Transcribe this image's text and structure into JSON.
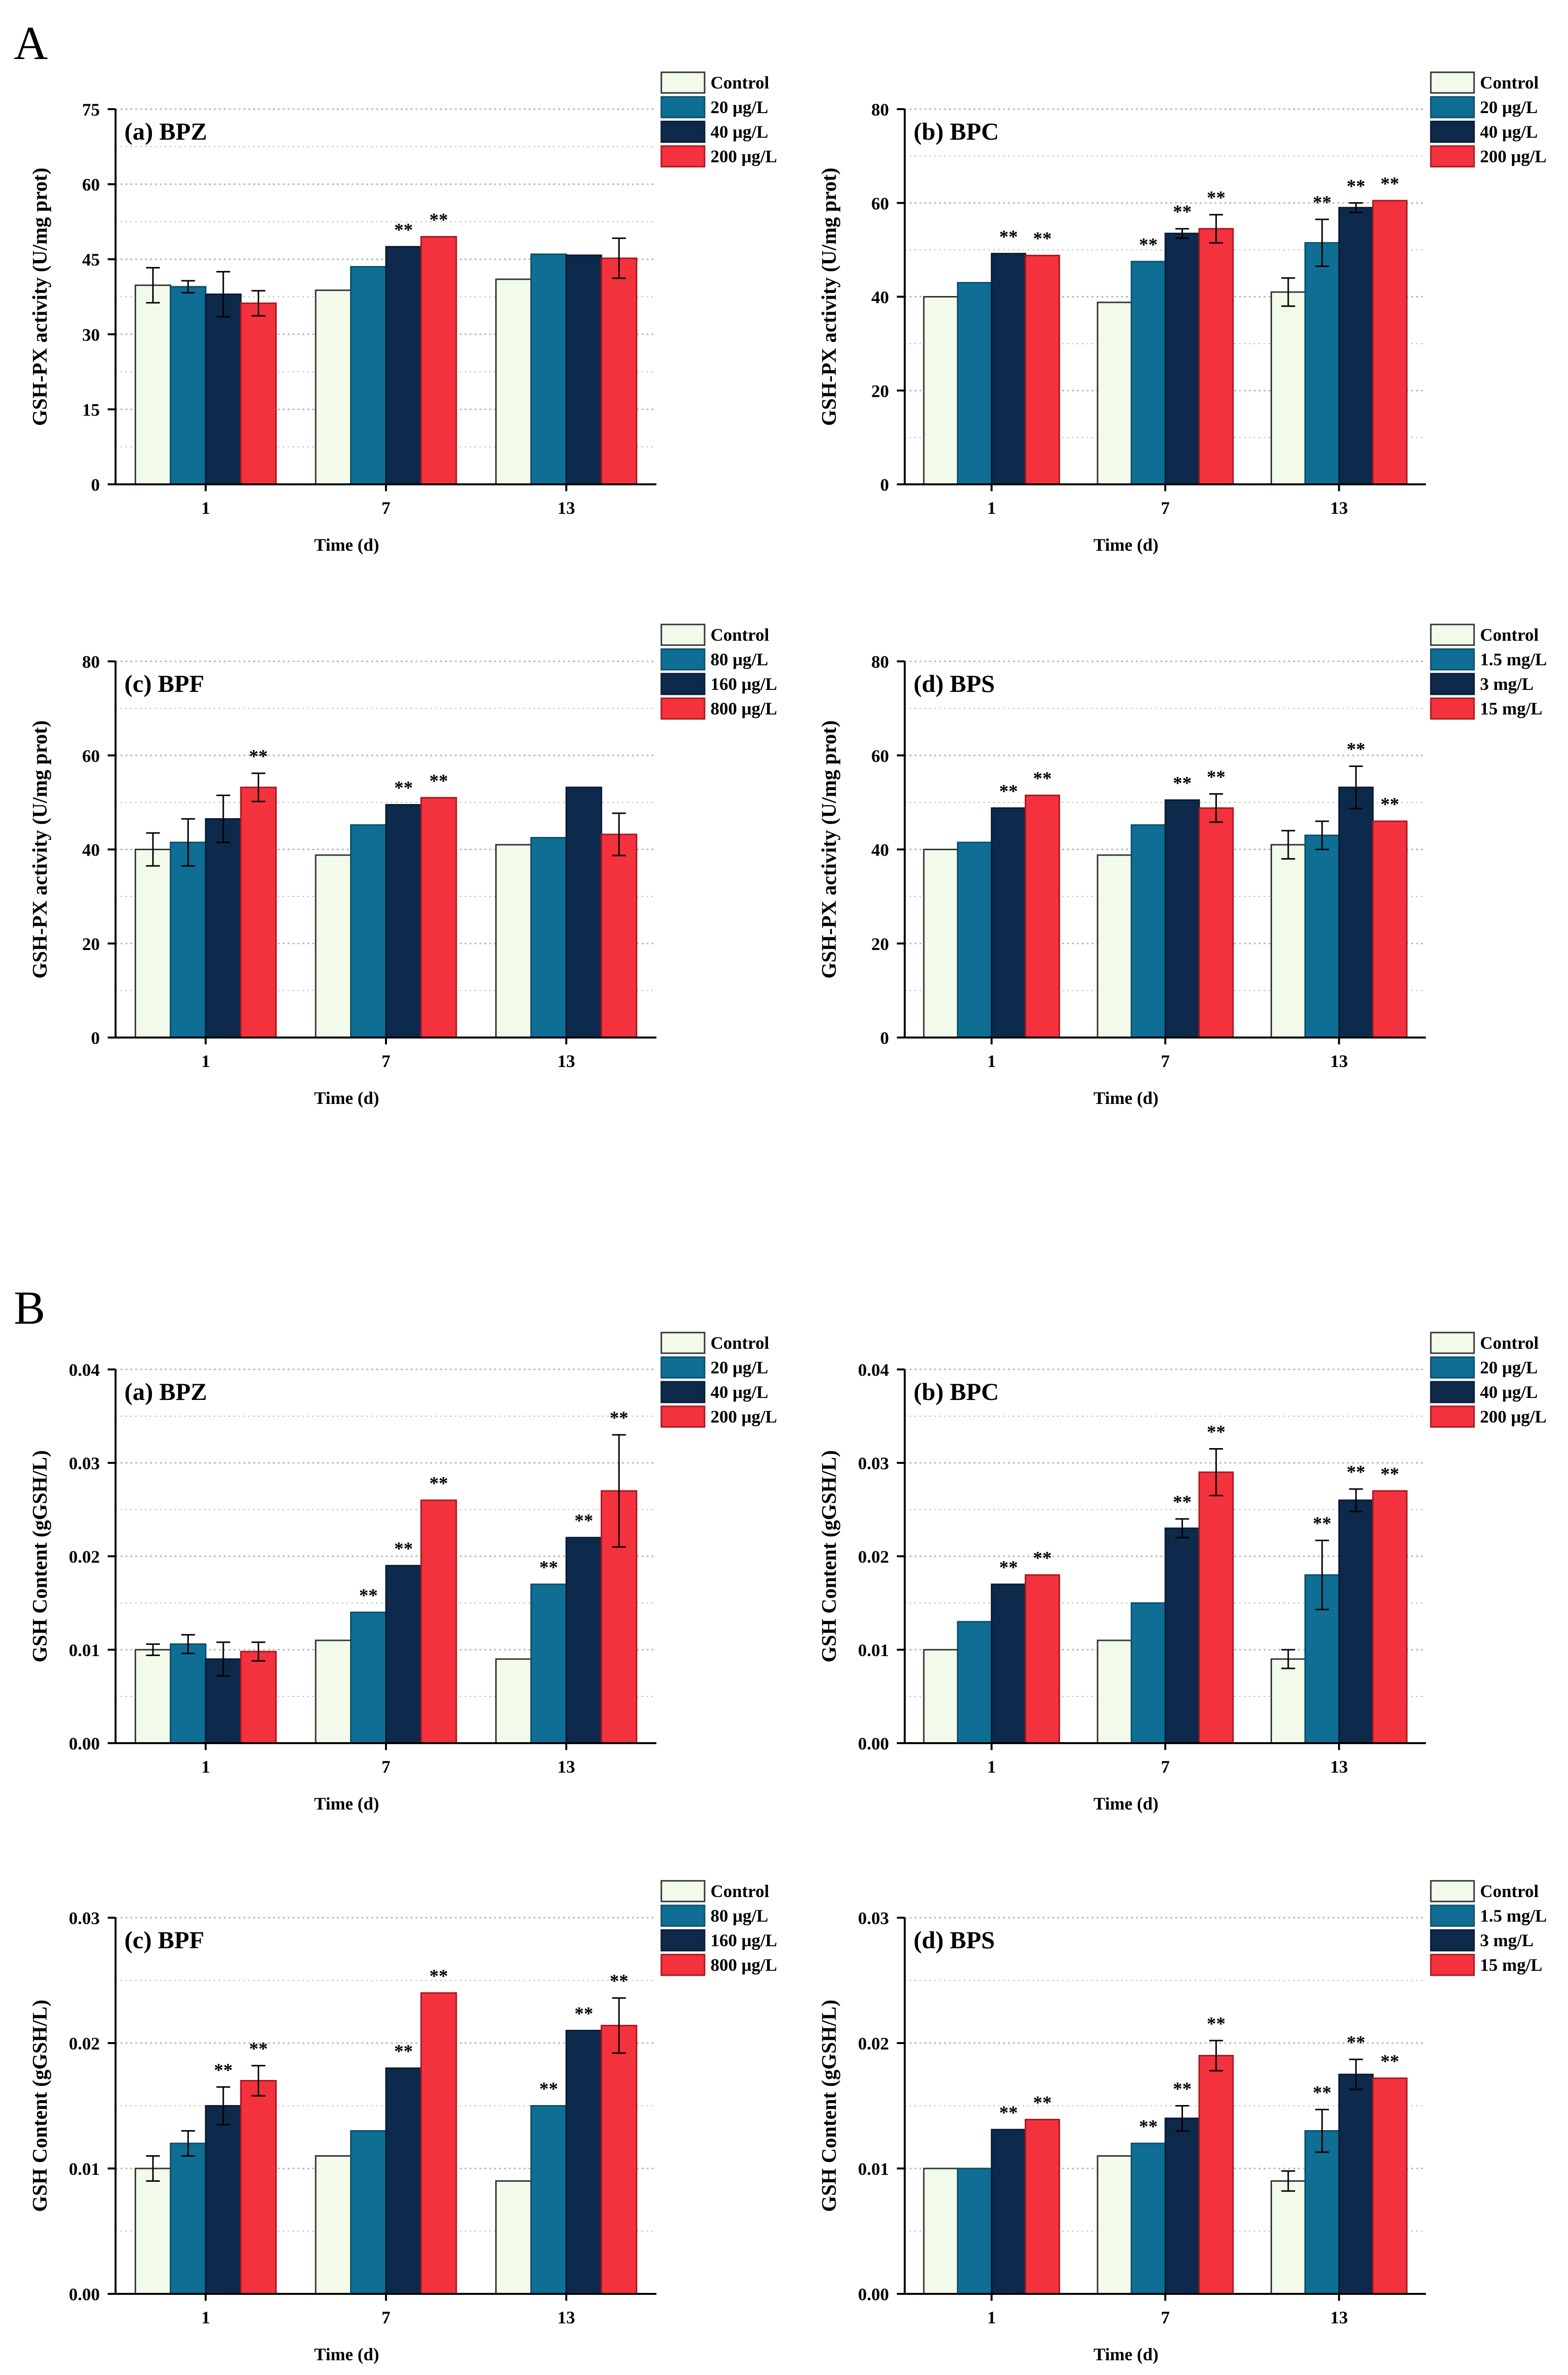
{
  "colors": {
    "control": "#f2faea",
    "c1": "#0f6e94",
    "c2": "#0d2a4c",
    "c3": "#f4323d",
    "grid": "#b8b8b8",
    "axis": "#000000"
  },
  "section_labels": {
    "A": "A",
    "B": "B"
  },
  "sig_mark": "**",
  "chart_data": [
    {
      "type": "bar",
      "section": "A",
      "title": "(a) BPZ",
      "xlabel": "Time (d)",
      "ylabel": "GSH-PX activity (U/mg prot)",
      "categories": [
        "1",
        "7",
        "13"
      ],
      "ylim": [
        0,
        75
      ],
      "yticks": [
        "0",
        "15",
        "30",
        "45",
        "60",
        "75"
      ],
      "ytick_values": [
        0,
        15,
        30,
        45,
        60,
        75
      ],
      "legend": [
        "Control",
        "20 μg/L",
        "40 μg/L",
        "200 μg/L"
      ],
      "series": [
        {
          "name": "Control",
          "values": [
            39.8,
            38.8,
            41.0
          ],
          "errors": [
            3.5,
            0,
            0
          ],
          "sig": [
            "",
            "",
            ""
          ]
        },
        {
          "name": "20 μg/L",
          "values": [
            39.5,
            43.5,
            46.0
          ],
          "errors": [
            1.2,
            0,
            0
          ],
          "sig": [
            "",
            "",
            ""
          ]
        },
        {
          "name": "40 μg/L",
          "values": [
            38.0,
            47.5,
            45.8
          ],
          "errors": [
            4.5,
            0,
            0
          ],
          "sig": [
            "",
            "**",
            ""
          ]
        },
        {
          "name": "200 μg/L",
          "values": [
            36.2,
            49.5,
            45.2
          ],
          "errors": [
            2.5,
            0,
            4.0
          ],
          "sig": [
            "",
            "**",
            ""
          ]
        }
      ]
    },
    {
      "type": "bar",
      "section": "A",
      "title": "(b) BPC",
      "xlabel": "Time (d)",
      "ylabel": "GSH-PX activity (U/mg prot)",
      "categories": [
        "1",
        "7",
        "13"
      ],
      "ylim": [
        0,
        80
      ],
      "yticks": [
        "0",
        "20",
        "40",
        "60",
        "80"
      ],
      "ytick_values": [
        0,
        20,
        40,
        60,
        80
      ],
      "legend": [
        "Control",
        "20 μg/L",
        "40 μg/L",
        "200 μg/L"
      ],
      "series": [
        {
          "name": "Control",
          "values": [
            40.0,
            38.8,
            41.0
          ],
          "errors": [
            0,
            0,
            3.0
          ],
          "sig": [
            "",
            "",
            ""
          ]
        },
        {
          "name": "20 μg/L",
          "values": [
            43.0,
            47.5,
            51.5
          ],
          "errors": [
            0,
            0,
            5.0
          ],
          "sig": [
            "",
            "**",
            "**"
          ]
        },
        {
          "name": "40 μg/L",
          "values": [
            49.2,
            53.5,
            59.0
          ],
          "errors": [
            0,
            1.0,
            1.0
          ],
          "sig": [
            "**",
            "**",
            "**"
          ]
        },
        {
          "name": "200 μg/L",
          "values": [
            48.8,
            54.5,
            60.5
          ],
          "errors": [
            0,
            3.0,
            0
          ],
          "sig": [
            "**",
            "**",
            "**"
          ]
        }
      ]
    },
    {
      "type": "bar",
      "section": "A",
      "title": "(c) BPF",
      "xlabel": "Time (d)",
      "ylabel": "GSH-PX activity (U/mg prot)",
      "categories": [
        "1",
        "7",
        "13"
      ],
      "ylim": [
        0,
        80
      ],
      "yticks": [
        "0",
        "20",
        "40",
        "60",
        "80"
      ],
      "ytick_values": [
        0,
        20,
        40,
        60,
        80
      ],
      "legend": [
        "Control",
        "80 μg/L",
        "160 μg/L",
        "800 μg/L"
      ],
      "series": [
        {
          "name": "Control",
          "values": [
            40.0,
            38.8,
            41.0
          ],
          "errors": [
            3.5,
            0,
            0
          ],
          "sig": [
            "",
            "",
            ""
          ]
        },
        {
          "name": "80 μg/L",
          "values": [
            41.5,
            45.2,
            42.5
          ],
          "errors": [
            5.0,
            0,
            0
          ],
          "sig": [
            "",
            "",
            ""
          ]
        },
        {
          "name": "160 μg/L",
          "values": [
            46.5,
            49.5,
            53.2
          ],
          "errors": [
            5.0,
            0,
            0
          ],
          "sig": [
            "",
            "**",
            ""
          ]
        },
        {
          "name": "800 μg/L",
          "values": [
            53.2,
            51.0,
            43.2
          ],
          "errors": [
            3.0,
            0,
            4.5
          ],
          "sig": [
            "**",
            "**",
            ""
          ]
        }
      ]
    },
    {
      "type": "bar",
      "section": "A",
      "title": "(d) BPS",
      "xlabel": "Time (d)",
      "ylabel": "GSH-PX activity (U/mg prot)",
      "categories": [
        "1",
        "7",
        "13"
      ],
      "ylim": [
        0,
        80
      ],
      "yticks": [
        "0",
        "20",
        "40",
        "60",
        "80"
      ],
      "ytick_values": [
        0,
        20,
        40,
        60,
        80
      ],
      "legend": [
        "Control",
        "1.5 mg/L",
        "3 mg/L",
        "15 mg/L"
      ],
      "series": [
        {
          "name": "Control",
          "values": [
            40.0,
            38.8,
            41.0
          ],
          "errors": [
            0,
            0,
            3.0
          ],
          "sig": [
            "",
            "",
            ""
          ]
        },
        {
          "name": "1.5 mg/L",
          "values": [
            41.5,
            45.2,
            43.0
          ],
          "errors": [
            0,
            0,
            3.0
          ],
          "sig": [
            "",
            "",
            ""
          ]
        },
        {
          "name": "3 mg/L",
          "values": [
            48.8,
            50.5,
            53.2
          ],
          "errors": [
            0,
            0,
            4.5
          ],
          "sig": [
            "**",
            "**",
            "**"
          ]
        },
        {
          "name": "15 mg/L",
          "values": [
            51.5,
            48.8,
            46.0
          ],
          "errors": [
            0,
            3.0,
            0
          ],
          "sig": [
            "**",
            "**",
            "**"
          ]
        }
      ]
    },
    {
      "type": "bar",
      "section": "B",
      "title": "(a) BPZ",
      "xlabel": "Time (d)",
      "ylabel": "GSH Content (gGSH/L)",
      "categories": [
        "1",
        "7",
        "13"
      ],
      "ylim": [
        0,
        0.04
      ],
      "yticks": [
        "0.00",
        "0.01",
        "0.02",
        "0.03",
        "0.04"
      ],
      "ytick_values": [
        0,
        0.01,
        0.02,
        0.03,
        0.04
      ],
      "legend": [
        "Control",
        "20 μg/L",
        "40 μg/L",
        "200 μg/L"
      ],
      "series": [
        {
          "name": "Control",
          "values": [
            0.01,
            0.011,
            0.009
          ],
          "errors": [
            0.0006,
            0,
            0
          ],
          "sig": [
            "",
            "",
            ""
          ]
        },
        {
          "name": "20 μg/L",
          "values": [
            0.0106,
            0.014,
            0.017
          ],
          "errors": [
            0.001,
            0,
            0
          ],
          "sig": [
            "",
            "**",
            "**"
          ]
        },
        {
          "name": "40 μg/L",
          "values": [
            0.009,
            0.019,
            0.022
          ],
          "errors": [
            0.0018,
            0,
            0
          ],
          "sig": [
            "",
            "**",
            "**"
          ]
        },
        {
          "name": "200 μg/L",
          "values": [
            0.0098,
            0.026,
            0.027
          ],
          "errors": [
            0.001,
            0,
            0.006
          ],
          "sig": [
            "",
            "**",
            "**"
          ]
        }
      ]
    },
    {
      "type": "bar",
      "section": "B",
      "title": "(b) BPC",
      "xlabel": "Time (d)",
      "ylabel": "GSH Content (gGSH/L)",
      "categories": [
        "1",
        "7",
        "13"
      ],
      "ylim": [
        0,
        0.04
      ],
      "yticks": [
        "0.00",
        "0.01",
        "0.02",
        "0.03",
        "0.04"
      ],
      "ytick_values": [
        0,
        0.01,
        0.02,
        0.03,
        0.04
      ],
      "legend": [
        "Control",
        "20 μg/L",
        "40 μg/L",
        "200 μg/L"
      ],
      "series": [
        {
          "name": "Control",
          "values": [
            0.01,
            0.011,
            0.009
          ],
          "errors": [
            0,
            0,
            0.001
          ],
          "sig": [
            "",
            "",
            ""
          ]
        },
        {
          "name": "20 μg/L",
          "values": [
            0.013,
            0.015,
            0.018
          ],
          "errors": [
            0,
            0,
            0.0037
          ],
          "sig": [
            "",
            "",
            "**"
          ]
        },
        {
          "name": "40 μg/L",
          "values": [
            0.017,
            0.023,
            0.026
          ],
          "errors": [
            0,
            0.001,
            0.0012
          ],
          "sig": [
            "**",
            "**",
            "**"
          ]
        },
        {
          "name": "200 μg/L",
          "values": [
            0.018,
            0.029,
            0.027
          ],
          "errors": [
            0,
            0.0025,
            0
          ],
          "sig": [
            "**",
            "**",
            "**"
          ]
        }
      ]
    },
    {
      "type": "bar",
      "section": "B",
      "title": "(c) BPF",
      "xlabel": "Time (d)",
      "ylabel": "GSH Content (gGSH/L)",
      "categories": [
        "1",
        "7",
        "13"
      ],
      "ylim": [
        0,
        0.03
      ],
      "yticks": [
        "0.00",
        "0.01",
        "0.02",
        "0.03"
      ],
      "ytick_values": [
        0,
        0.01,
        0.02,
        0.03
      ],
      "legend": [
        "Control",
        "80 μg/L",
        "160 μg/L",
        "800 μg/L"
      ],
      "series": [
        {
          "name": "Control",
          "values": [
            0.01,
            0.011,
            0.009
          ],
          "errors": [
            0.001,
            0,
            0
          ],
          "sig": [
            "",
            "",
            ""
          ]
        },
        {
          "name": "80 μg/L",
          "values": [
            0.012,
            0.013,
            0.015
          ],
          "errors": [
            0.001,
            0,
            0
          ],
          "sig": [
            "",
            "",
            "**"
          ]
        },
        {
          "name": "160 μg/L",
          "values": [
            0.015,
            0.018,
            0.021
          ],
          "errors": [
            0.0015,
            0,
            0
          ],
          "sig": [
            "**",
            "**",
            "**"
          ]
        },
        {
          "name": "800 μg/L",
          "values": [
            0.017,
            0.024,
            0.0214
          ],
          "errors": [
            0.0012,
            0,
            0.0022
          ],
          "sig": [
            "**",
            "**",
            "**"
          ]
        }
      ]
    },
    {
      "type": "bar",
      "section": "B",
      "title": "(d) BPS",
      "xlabel": "Time (d)",
      "ylabel": "GSH Content (gGSH/L)",
      "categories": [
        "1",
        "7",
        "13"
      ],
      "ylim": [
        0,
        0.03
      ],
      "yticks": [
        "0.00",
        "0.01",
        "0.02",
        "0.03"
      ],
      "ytick_values": [
        0,
        0.01,
        0.02,
        0.03
      ],
      "legend": [
        "Control",
        "1.5 mg/L",
        "3 mg/L",
        "15 mg/L"
      ],
      "series": [
        {
          "name": "Control",
          "values": [
            0.01,
            0.011,
            0.009
          ],
          "errors": [
            0,
            0,
            0.0008
          ],
          "sig": [
            "",
            "",
            ""
          ]
        },
        {
          "name": "1.5 mg/L",
          "values": [
            0.01,
            0.012,
            0.013
          ],
          "errors": [
            0,
            0,
            0.0017
          ],
          "sig": [
            "",
            "**",
            "**"
          ]
        },
        {
          "name": "3 mg/L",
          "values": [
            0.0131,
            0.014,
            0.0175
          ],
          "errors": [
            0,
            0.001,
            0.0012
          ],
          "sig": [
            "**",
            "**",
            "**"
          ]
        },
        {
          "name": "15 mg/L",
          "values": [
            0.0139,
            0.019,
            0.0172
          ],
          "errors": [
            0,
            0.0012,
            0
          ],
          "sig": [
            "**",
            "**",
            "**"
          ]
        }
      ]
    }
  ]
}
